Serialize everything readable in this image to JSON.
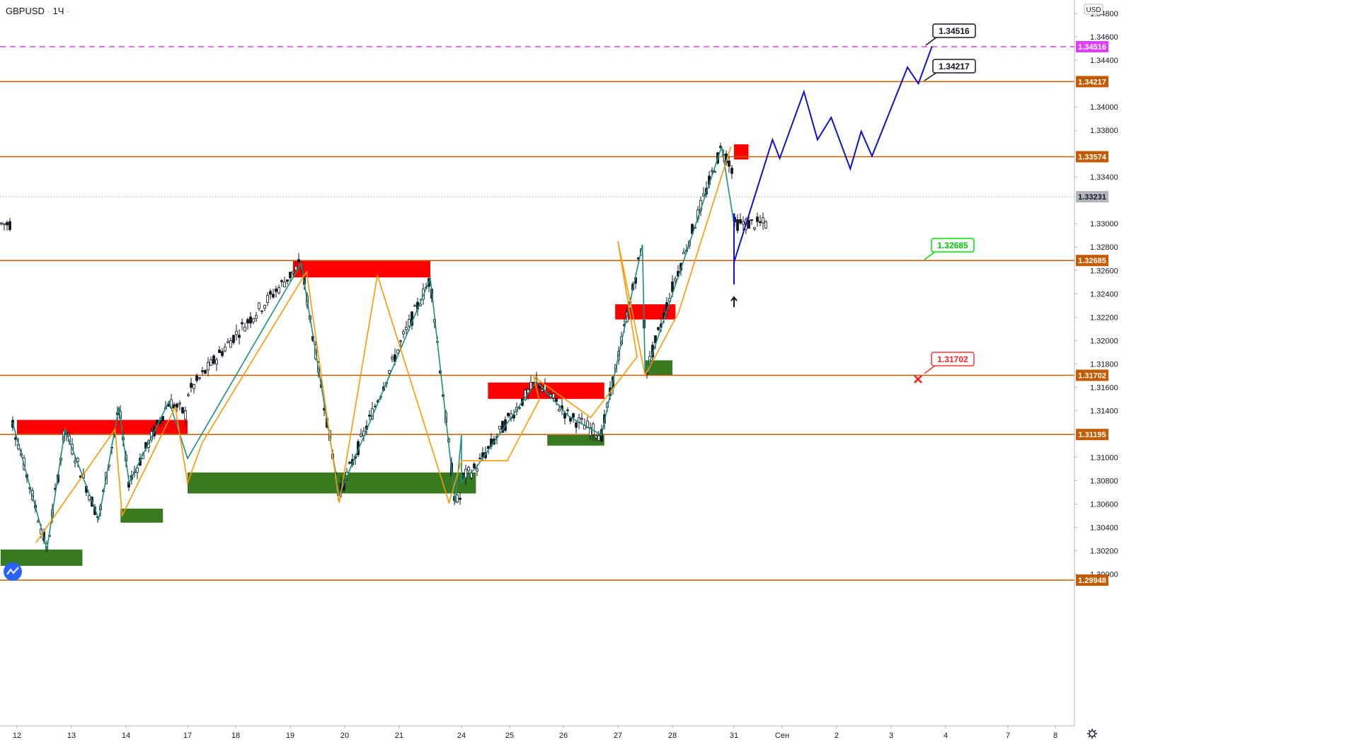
{
  "header": {
    "symbol": "GBPUSD",
    "separator1": "·",
    "interval": "1Ч",
    "separator2": "·"
  },
  "axis": {
    "currency": "USD",
    "y_ticks": [
      "1.34800",
      "1.34600",
      "1.34400",
      "1.34000",
      "1.33800",
      "1.33400",
      "1.33000",
      "1.32800",
      "1.32600",
      "1.32400",
      "1.32200",
      "1.32000",
      "1.31800",
      "1.31600",
      "1.31400",
      "1.31000",
      "1.30800",
      "1.30600",
      "1.30400",
      "1.30200",
      "1.30000"
    ],
    "x_ticks": [
      "12",
      "13",
      "14",
      "17",
      "18",
      "19",
      "20",
      "21",
      "24",
      "25",
      "26",
      "27",
      "28",
      "31",
      "Сен",
      "2",
      "3",
      "4",
      "7",
      "8"
    ]
  },
  "chart_data": {
    "type": "candlestick",
    "symbol": "GBPUSD",
    "timeframe": "1Ч",
    "currency": "USD",
    "ylim": [
      1.2993,
      1.3498
    ],
    "levels": [
      {
        "price": 1.34516,
        "label": "1.34516",
        "color": "#e040fb",
        "style": "dashed"
      },
      {
        "price": 1.34217,
        "label": "1.34217",
        "color": "#c45b00",
        "style": "solid"
      },
      {
        "price": 1.33574,
        "label": "1.33574",
        "color": "#c45b00",
        "style": "solid"
      },
      {
        "price": 1.33231,
        "label": "1.33231",
        "color": "#9598a1",
        "style": "dotted"
      },
      {
        "price": 1.32685,
        "label": "1.32685",
        "color": "#c45b00",
        "style": "solid"
      },
      {
        "price": 1.31702,
        "label": "1.31702",
        "color": "#c45b00",
        "style": "solid"
      },
      {
        "price": 1.31195,
        "label": "1.31195",
        "color": "#c45b00",
        "style": "solid"
      },
      {
        "price": 1.29948,
        "label": "1.29948",
        "color": "#c45b00",
        "style": "solid"
      }
    ],
    "callouts": [
      {
        "label": "1.34516",
        "border": "#131722",
        "text": "#131722"
      },
      {
        "label": "1.34217",
        "border": "#131722",
        "text": "#131722"
      },
      {
        "label": "1.32685",
        "border": "#00e600",
        "text": "#00c800"
      },
      {
        "label": "1.31702",
        "border": "#ff3333",
        "text": "#ff2222"
      }
    ],
    "supply_zones": [
      {
        "from": "12",
        "to": "16.9",
        "low": 1.312,
        "high": 1.3132
      },
      {
        "from": "19.05",
        "to": "21.5",
        "low": 1.3254,
        "high": 1.3268
      },
      {
        "from": "24.55",
        "to": "26.75",
        "low": 1.315,
        "high": 1.3164
      },
      {
        "from": "26.95",
        "to": "28.05",
        "low": 1.3218,
        "high": 1.3231
      },
      {
        "from": "30.75",
        "to": "31.3",
        "low": 1.3355,
        "high": 1.3368
      }
    ],
    "demand_zones": [
      {
        "from": "11.7",
        "to": "13.2",
        "low": 1.3007,
        "high": 1.3021
      },
      {
        "from": "13.9",
        "to": "14.6",
        "low": 1.3044,
        "high": 1.3056
      },
      {
        "from": "16.95",
        "to": "24.3",
        "low": 1.3069,
        "high": 1.3087
      },
      {
        "from": "25.7",
        "to": "26.75",
        "low": 1.311,
        "high": 1.3119
      },
      {
        "from": "27.5",
        "to": "28.0",
        "low": 1.317,
        "high": 1.3183
      }
    ],
    "zigzag_orange": [
      [
        12.35,
        1.3027
      ],
      [
        13.8,
        1.3124
      ],
      [
        13.93,
        1.305
      ],
      [
        14.8,
        1.3143
      ],
      [
        16.4,
        1.3078
      ],
      [
        17.3,
        1.3112
      ],
      [
        19.3,
        1.3259
      ],
      [
        19.9,
        1.3061
      ],
      [
        20.6,
        1.3256
      ],
      [
        21.8,
        1.3061
      ],
      [
        23.7,
        1.3097
      ],
      [
        24.95,
        1.3097
      ],
      [
        25.55,
        1.3149
      ],
      [
        25.45,
        1.3169
      ],
      [
        26.5,
        1.3134
      ],
      [
        27.35,
        1.3186
      ],
      [
        27.0,
        1.3285
      ],
      [
        27.5,
        1.317
      ],
      [
        28.1,
        1.3224
      ],
      [
        28.95,
        1.3366
      ]
    ],
    "zigzag_teal": [
      [
        11.92,
        1.313
      ],
      [
        12.55,
        1.3021
      ],
      [
        12.88,
        1.3124
      ],
      [
        13.5,
        1.3047
      ],
      [
        13.87,
        1.3143
      ],
      [
        14.05,
        1.3078
      ],
      [
        14.7,
        1.3148
      ],
      [
        15.9,
        1.3099
      ],
      [
        19.2,
        1.3266
      ],
      [
        19.9,
        1.3068
      ],
      [
        21.5,
        1.3253
      ],
      [
        21.9,
        1.3061
      ],
      [
        23.05,
        1.3119
      ],
      [
        23.9,
        1.3079
      ],
      [
        24.3,
        1.3091
      ],
      [
        25.5,
        1.3165
      ],
      [
        26.1,
        1.3135
      ],
      [
        26.7,
        1.3119
      ],
      [
        26.85,
        1.3152
      ],
      [
        27.45,
        1.3282
      ],
      [
        27.5,
        1.317
      ],
      [
        28.8,
        1.3366
      ],
      [
        29.4,
        1.33
      ]
    ],
    "forecast_path": [
      [
        29.7,
        1.3309
      ],
      [
        29.9,
        1.3277
      ],
      [
        30.15,
        1.3294
      ],
      [
        30.45,
        1.3248
      ],
      [
        30.75,
        1.328
      ],
      [
        30.95,
        1.3267
      ],
      [
        31.8,
        1.3372
      ],
      [
        31.95,
        1.3356
      ],
      [
        32.4,
        1.3413
      ],
      [
        32.65,
        1.3372
      ],
      [
        32.9,
        1.3391
      ],
      [
        33.25,
        1.3347
      ],
      [
        33.45,
        1.3379
      ],
      [
        33.65,
        1.3358
      ],
      [
        34.3,
        1.3434
      ],
      [
        34.5,
        1.342
      ],
      [
        34.75,
        1.3452
      ]
    ],
    "forecast_color": "#1010d0",
    "candles_note": "GBPUSD hourly, 12 Aug – 31 Aug; low ≈ 1.3006 (13 Aug), high ≈ 1.3367 (31 Aug)"
  }
}
